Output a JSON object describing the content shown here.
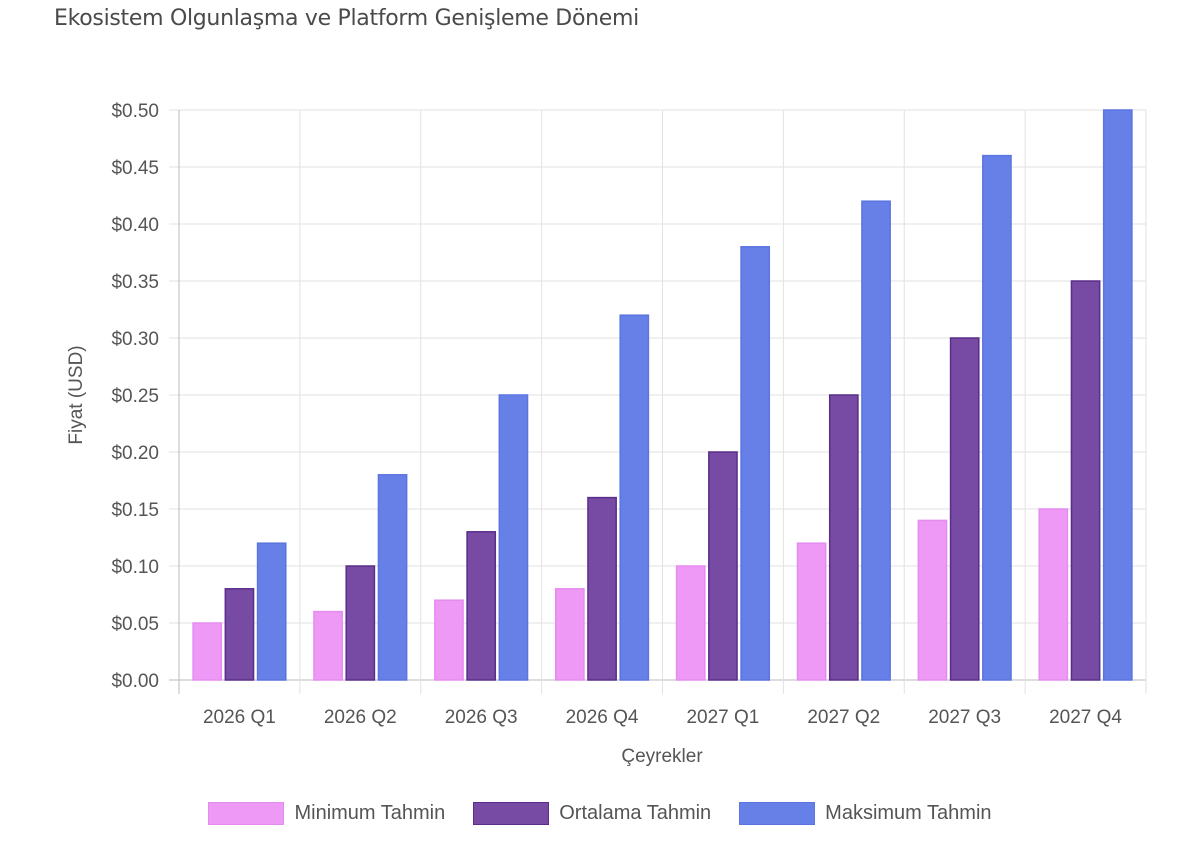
{
  "chart_data": {
    "type": "bar",
    "title": "Ekosistem Olgunlaşma ve Platform Genişleme Dönemi",
    "xlabel": "Çeyrekler",
    "ylabel": "Fiyat (USD)",
    "ylim": [
      0,
      0.5
    ],
    "yticks": [
      "$0.00",
      "$0.05",
      "$0.10",
      "$0.15",
      "$0.20",
      "$0.25",
      "$0.30",
      "$0.35",
      "$0.40",
      "$0.45",
      "$0.50"
    ],
    "ytick_values": [
      0,
      0.05,
      0.1,
      0.15,
      0.2,
      0.25,
      0.3,
      0.35,
      0.4,
      0.45,
      0.5
    ],
    "grid": true,
    "legend_position": "bottom",
    "categories": [
      "2026 Q1",
      "2026 Q2",
      "2026 Q3",
      "2026 Q4",
      "2027 Q1",
      "2027 Q2",
      "2027 Q3",
      "2027 Q4"
    ],
    "series": [
      {
        "name": "Minimum Tahmin",
        "color": "#ee99f5",
        "border": "#e58cf0",
        "values": [
          0.05,
          0.06,
          0.07,
          0.08,
          0.1,
          0.12,
          0.14,
          0.15
        ]
      },
      {
        "name": "Ortalama Tahmin",
        "color": "#774ba3",
        "border": "#5a2d8a",
        "values": [
          0.08,
          0.1,
          0.13,
          0.16,
          0.2,
          0.25,
          0.3,
          0.35
        ]
      },
      {
        "name": "Maksimum Tahmin",
        "color": "#6780e8",
        "border": "#5b74e0",
        "values": [
          0.12,
          0.18,
          0.25,
          0.32,
          0.38,
          0.42,
          0.46,
          0.5
        ]
      }
    ]
  }
}
